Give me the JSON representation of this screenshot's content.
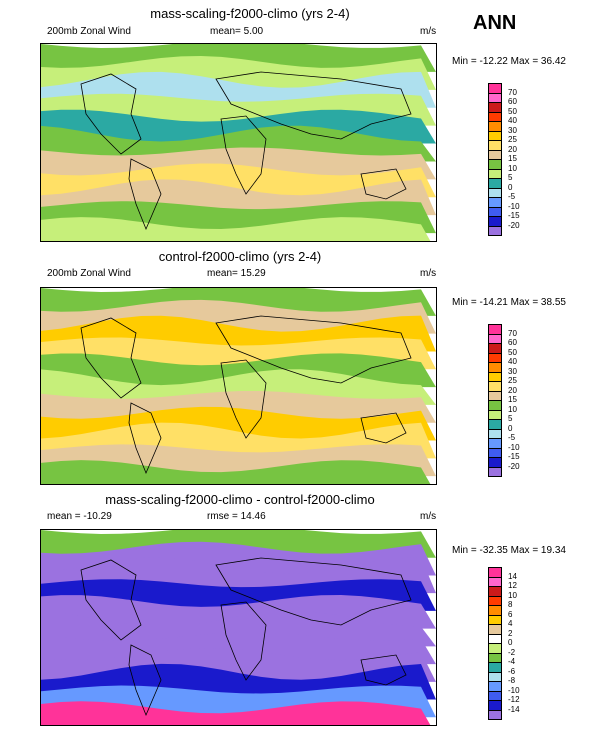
{
  "season": "ANN",
  "panels": [
    {
      "title": "mass-scaling-f2000-climo (yrs 2-4)",
      "left_label": "200mb Zonal Wind",
      "center_label": "mean=  5.00",
      "right_label": "m/s",
      "minmax": "Min = -12.22 Max =  36.42",
      "colorbar_labels": [
        "70",
        "60",
        "50",
        "40",
        "30",
        "25",
        "20",
        "15",
        "10",
        "5",
        "0",
        "-5",
        "-10",
        "-15",
        "-20"
      ],
      "colorbar_colors": [
        "#ff3399",
        "#ff66cc",
        "#cc1a1a",
        "#ff3b00",
        "#ff8c00",
        "#ffcc00",
        "#ffe066",
        "#e6c99c",
        "#77c442",
        "#c6ef7a",
        "#2ba9a3",
        "#aee0ee",
        "#6699ff",
        "#3f5cf0",
        "#1a1acc",
        "#9b72e0"
      ],
      "bands": [
        "#77c442",
        "#c6ef7a",
        "#aee0ee",
        "#c6ef7a",
        "#2ba9a3",
        "#77c442",
        "#e6c99c",
        "#ffe066",
        "#e6c99c",
        "#77c442",
        "#c6ef7a"
      ]
    },
    {
      "title": "control-f2000-climo (yrs 2-4)",
      "left_label": "200mb Zonal Wind",
      "center_label": "mean=  15.29",
      "right_label": "m/s",
      "minmax": "Min = -14.21 Max =  38.55",
      "colorbar_labels": [
        "70",
        "60",
        "50",
        "40",
        "30",
        "25",
        "20",
        "15",
        "10",
        "5",
        "0",
        "-5",
        "-10",
        "-15",
        "-20"
      ],
      "colorbar_colors": [
        "#ff3399",
        "#ff66cc",
        "#cc1a1a",
        "#ff3b00",
        "#ff8c00",
        "#ffcc00",
        "#ffe066",
        "#e6c99c",
        "#77c442",
        "#c6ef7a",
        "#2ba9a3",
        "#aee0ee",
        "#6699ff",
        "#3f5cf0",
        "#1a1acc",
        "#9b72e0"
      ],
      "bands": [
        "#77c442",
        "#e6c99c",
        "#ffcc00",
        "#ffe066",
        "#77c442",
        "#c6ef7a",
        "#e6c99c",
        "#ffcc00",
        "#ffe066",
        "#e6c99c",
        "#77c442"
      ]
    },
    {
      "title": "mass-scaling-f2000-climo - control-f2000-climo",
      "left_label": "mean = -10.29",
      "center_label": "rmse =  14.46",
      "right_label": "m/s",
      "minmax": "Min = -32.35 Max =  19.34",
      "colorbar_labels": [
        "14",
        "12",
        "10",
        "8",
        "6",
        "4",
        "2",
        "0",
        "-2",
        "-4",
        "-6",
        "-8",
        "-10",
        "-12",
        "-14"
      ],
      "colorbar_colors": [
        "#ff3399",
        "#ff66cc",
        "#cc1a1a",
        "#ff3b00",
        "#ff8c00",
        "#ffcc00",
        "#e6c99c",
        "#ffffff",
        "#c6ef7a",
        "#77c442",
        "#2ba9a3",
        "#aee0ee",
        "#6699ff",
        "#3f5cf0",
        "#1a1acc",
        "#9b72e0"
      ],
      "bands": [
        "#77c442",
        "#9b72e0",
        "#9b72e0",
        "#1a1acc",
        "#9b72e0",
        "#9b72e0",
        "#9b72e0",
        "#9b72e0",
        "#1a1acc",
        "#6699ff",
        "#ff3399"
      ]
    }
  ]
}
